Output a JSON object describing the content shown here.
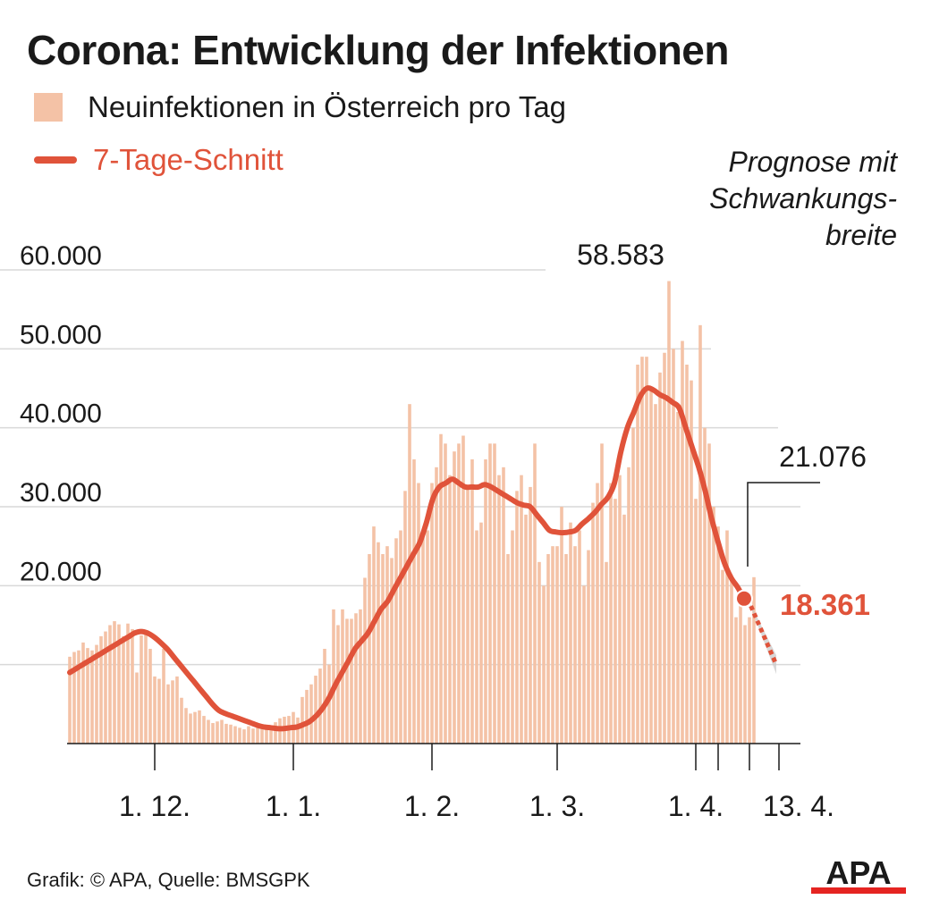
{
  "title": "Corona: Entwicklung der Infektionen",
  "legend": {
    "bars_label": "Neuinfektionen in Österreich pro Tag",
    "line_label": "7-Tage-Schnitt"
  },
  "annotations": {
    "forecast_note": [
      "Prognose mit",
      "Schwankungs-",
      "breite"
    ],
    "peak_value": "58.583",
    "last_value": "21.076",
    "avg_value": "18.361"
  },
  "footer": "Grafik: © APA, Quelle: BMSGPK",
  "logo_text": "APA",
  "colors": {
    "bar": "#f4c2a6",
    "line": "#e0533a",
    "forecast_band": "#c8c8c8",
    "grid": "#d9d9d9",
    "text": "#1a1a1a",
    "logo_red": "#e52421"
  },
  "chart_data": {
    "type": "bar",
    "title": "Corona: Entwicklung der Infektionen",
    "xlabel": "",
    "ylabel": "",
    "ylim": [
      0,
      60000
    ],
    "yticks": [
      20000,
      30000,
      40000,
      50000,
      60000
    ],
    "ytick_labels": [
      "20.000",
      "30.000",
      "40.000",
      "50.000",
      "60.000"
    ],
    "grid": true,
    "x_tick_labels": [
      "1. 12.",
      "1. 1.",
      "1. 2.",
      "1. 3.",
      "1. 4.",
      "13. 4."
    ],
    "x_tick_days": [
      19,
      50,
      81,
      109,
      140,
      152
    ],
    "x_tick_label_days": [
      19,
      50,
      81,
      109,
      140,
      152
    ],
    "x_minor_tick_days": [
      145
    ],
    "first_day": "12. 11.",
    "series": [
      {
        "name": "Neuinfektionen in Österreich pro Tag",
        "type": "bar",
        "values": [
          11000,
          11600,
          11800,
          12800,
          12100,
          11800,
          12500,
          13600,
          14200,
          15000,
          15500,
          15100,
          13600,
          15200,
          14500,
          9000,
          13700,
          14300,
          12000,
          8500,
          8200,
          12000,
          7500,
          8000,
          8500,
          5800,
          4500,
          3800,
          4000,
          4200,
          3500,
          3000,
          2600,
          2800,
          3000,
          2500,
          2400,
          2200,
          2000,
          1800,
          2200,
          1900,
          2000,
          2100,
          1900,
          2300,
          2700,
          3200,
          3400,
          3500,
          4000,
          3300,
          5900,
          6800,
          7500,
          8600,
          9500,
          12000,
          10000,
          17000,
          15000,
          17000,
          15800,
          15800,
          16500,
          17000,
          21000,
          24000,
          27500,
          25500,
          24000,
          25000,
          23500,
          26000,
          27000,
          32000,
          43000,
          36000,
          33000,
          26500,
          27000,
          33000,
          35000,
          39200,
          38000,
          34000,
          37000,
          38000,
          39000,
          32500,
          36000,
          27000,
          28000,
          36000,
          38000,
          38000,
          34000,
          35000,
          24000,
          27000,
          32000,
          34000,
          29000,
          32500,
          38000,
          23000,
          20000,
          24000,
          25000,
          25000,
          30000,
          24000,
          28000,
          25000,
          27000,
          20000,
          24500,
          30500,
          33000,
          38000,
          23000,
          33000,
          31000,
          34000,
          29000,
          35000,
          40000,
          48000,
          49000,
          49000,
          45000,
          43000,
          47000,
          49500,
          58583,
          50000,
          42000,
          51000,
          48000,
          46000,
          31000,
          53000,
          40000,
          38000,
          30000,
          27500,
          22000,
          27000,
          21000,
          16000,
          18000,
          15000,
          16000,
          21076
        ]
      },
      {
        "name": "7-Tage-Schnitt",
        "type": "line",
        "values": [
          9000,
          9500,
          10000,
          10500,
          11000,
          11500,
          12000,
          12500,
          13000,
          13500,
          14000,
          14200,
          14000,
          13500,
          12800,
          12000,
          11000,
          10000,
          9000,
          8000,
          7000,
          6000,
          5000,
          4200,
          3800,
          3500,
          3200,
          2900,
          2600,
          2300,
          2100,
          2000,
          1900,
          1900,
          2000,
          2100,
          2400,
          2800,
          3500,
          4500,
          5800,
          7500,
          9000,
          10500,
          12000,
          13000,
          14000,
          15500,
          17000,
          18000,
          19500,
          21000,
          22500,
          24000,
          25500,
          28000,
          31000,
          32500,
          33000,
          33500,
          33000,
          32500,
          32500,
          32500,
          32800,
          32500,
          32000,
          31500,
          31000,
          30500,
          30200,
          30000,
          29000,
          28000,
          27000,
          26800,
          26700,
          26800,
          27000,
          27800,
          28500,
          29300,
          30300,
          31200,
          33000,
          37000,
          40000,
          42000,
          44000,
          45000,
          44800,
          44200,
          43800,
          43200,
          42500,
          40000,
          37500,
          35000,
          32000,
          28500,
          25500,
          22800,
          21000,
          19800,
          18361
        ],
        "x_start_day": 0,
        "x_step": 1.45
      },
      {
        "name": "Prognose mit Schwankungsbreite",
        "type": "forecast",
        "x_start_day": 152,
        "x_end_day": 158,
        "center_start": 18361,
        "center_end": 10000,
        "band_start_half_width": 0,
        "band_end_half_width": 1200
      }
    ],
    "highlights": [
      {
        "label": "58.583",
        "day": 130,
        "value": 58583
      },
      {
        "label": "21.076",
        "day": 151,
        "value": 21076
      },
      {
        "label": "18.361",
        "day": 152,
        "value": 18361
      }
    ]
  }
}
